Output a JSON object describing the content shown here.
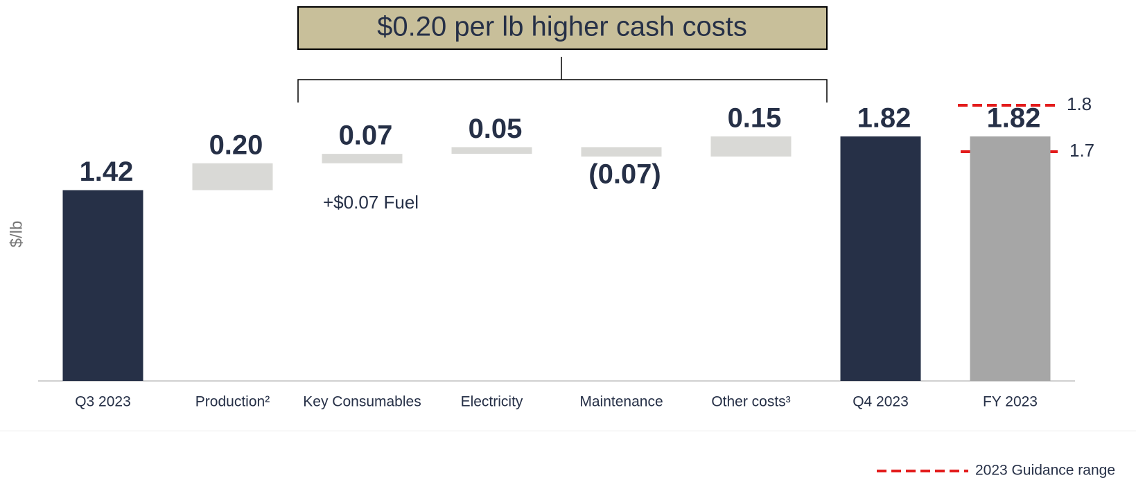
{
  "chart_data": {
    "type": "waterfall",
    "title": "$0.20 per lb higher cash costs",
    "y_label": "$/lb",
    "categories": [
      "Q3 2023",
      "Production²",
      "Key Consumables",
      "Electricity",
      "Maintenance",
      "Other costs³",
      "Q4 2023",
      "FY 2023"
    ],
    "values": [
      1.42,
      0.2,
      0.07,
      0.05,
      -0.07,
      0.15,
      1.82,
      1.82
    ],
    "value_labels": [
      "1.42",
      "0.20",
      "0.07",
      "0.05",
      "(0.07)",
      "0.15",
      "1.82",
      "1.82"
    ],
    "kinds": [
      "total",
      "delta",
      "delta",
      "delta",
      "delta",
      "delta",
      "total",
      "total"
    ],
    "colors": [
      "#263047",
      "#d9d9d6",
      "#d9d9d6",
      "#d9d9d6",
      "#d9d9d6",
      "#d9d9d6",
      "#263047",
      "#a6a6a6"
    ],
    "ylim": [
      0,
      2.5
    ],
    "annotations": [
      "+$0.07 Fuel"
    ],
    "guidance_labels": [
      "1.8",
      "1.7"
    ],
    "legend": "2023 Guidance range",
    "guidance_color": "#e31b1b"
  }
}
